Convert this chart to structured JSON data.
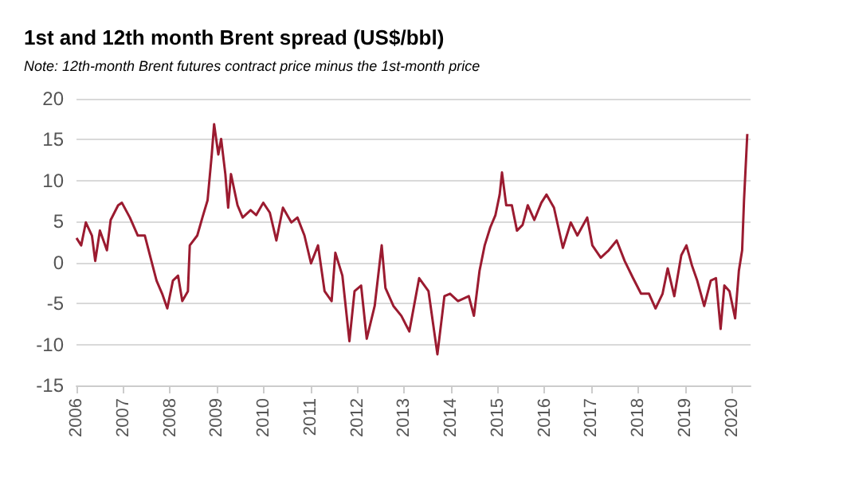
{
  "chart_data": {
    "type": "line",
    "title": "1st and 12th month Brent spread (US$/bbl)",
    "annotations": [
      "Note: 12th-month Brent futures contract price minus the 1st-month price"
    ],
    "x": [
      2006.0,
      2006.1,
      2006.2,
      2006.33,
      2006.4,
      2006.5,
      2006.65,
      2006.73,
      2006.89,
      2006.97,
      2007.14,
      2007.31,
      2007.46,
      2007.6,
      2007.71,
      2007.83,
      2007.94,
      2008.06,
      2008.17,
      2008.26,
      2008.38,
      2008.42,
      2008.58,
      2008.69,
      2008.8,
      2008.89,
      2008.94,
      2009.03,
      2009.09,
      2009.18,
      2009.24,
      2009.3,
      2009.44,
      2009.55,
      2009.72,
      2009.84,
      2009.99,
      2010.13,
      2010.27,
      2010.41,
      2010.59,
      2010.72,
      2010.87,
      2011.01,
      2011.16,
      2011.3,
      2011.45,
      2011.53,
      2011.68,
      2011.83,
      2011.94,
      2012.08,
      2012.2,
      2012.37,
      2012.52,
      2012.6,
      2012.77,
      2012.94,
      2013.11,
      2013.32,
      2013.52,
      2013.71,
      2013.86,
      2013.98,
      2014.15,
      2014.38,
      2014.49,
      2014.61,
      2014.72,
      2014.84,
      2014.95,
      2015.04,
      2015.09,
      2015.18,
      2015.3,
      2015.41,
      2015.53,
      2015.64,
      2015.78,
      2015.93,
      2016.04,
      2016.2,
      2016.39,
      2016.56,
      2016.7,
      2016.91,
      2017.02,
      2017.2,
      2017.37,
      2017.54,
      2017.71,
      2017.89,
      2018.06,
      2018.23,
      2018.37,
      2018.52,
      2018.63,
      2018.77,
      2018.92,
      2019.03,
      2019.15,
      2019.26,
      2019.41,
      2019.55,
      2019.66,
      2019.76,
      2019.84,
      2019.95,
      2020.07,
      2020.15,
      2020.22,
      2020.26,
      2020.33
    ],
    "series": [
      {
        "color": "#9b1b30",
        "values": [
          3.0,
          2.1,
          4.9,
          3.3,
          0.2,
          3.9,
          1.5,
          5.2,
          7.0,
          7.3,
          5.5,
          3.3,
          3.3,
          0.2,
          -2.2,
          -3.8,
          -5.6,
          -2.2,
          -1.6,
          -4.7,
          -3.5,
          2.1,
          3.3,
          5.5,
          7.6,
          13.2,
          16.9,
          13.2,
          15.1,
          10.8,
          6.7,
          10.8,
          7.0,
          5.5,
          6.4,
          5.8,
          7.3,
          6.1,
          2.7,
          6.7,
          4.9,
          5.5,
          3.3,
          -0.1,
          2.1,
          -3.5,
          -4.7,
          1.2,
          -1.6,
          -9.6,
          -3.5,
          -2.8,
          -9.3,
          -5.3,
          2.1,
          -3.1,
          -5.3,
          -6.5,
          -8.4,
          -1.9,
          -3.5,
          -11.2,
          -4.1,
          -3.8,
          -4.7,
          -4.1,
          -6.5,
          -1.0,
          2.1,
          4.3,
          5.8,
          8.3,
          11.0,
          7.0,
          7.0,
          3.9,
          4.6,
          7.0,
          5.2,
          7.3,
          8.3,
          6.7,
          1.8,
          4.9,
          3.3,
          5.5,
          2.1,
          0.6,
          1.5,
          2.7,
          0.2,
          -1.9,
          -3.8,
          -3.8,
          -5.6,
          -3.8,
          -0.7,
          -4.1,
          0.9,
          2.1,
          -0.4,
          -2.2,
          -5.3,
          -2.2,
          -1.9,
          -8.1,
          -2.8,
          -3.5,
          -6.8,
          -1.0,
          1.5,
          7.6,
          15.7
        ]
      }
    ],
    "xlim": [
      2006,
      2020.4
    ],
    "xticks": [
      2006,
      2007,
      2008,
      2009,
      2010,
      2011,
      2012,
      2013,
      2014,
      2015,
      2016,
      2017,
      2018,
      2019,
      2020
    ],
    "ylim": [
      -15,
      20
    ],
    "yticks": [
      -15,
      -10,
      -5,
      0,
      5,
      10,
      15,
      20
    ],
    "grid": "y",
    "marker": "none",
    "line_style": "solid"
  }
}
